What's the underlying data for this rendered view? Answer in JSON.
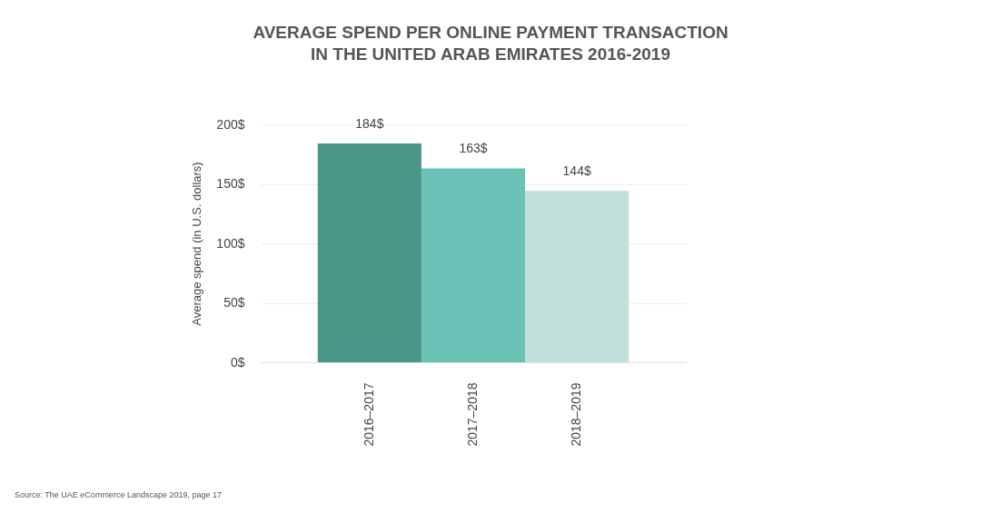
{
  "chart_data": {
    "type": "bar",
    "title": "AVERAGE SPEND PER ONLINE PAYMENT TRANSACTION\nIN THE UNITED ARAB EMIRATES 2016-2019",
    "ylabel": "Average spend (in U.S. dollars)",
    "categories": [
      "2016–2017",
      "2017–2018",
      "2018–2019"
    ],
    "values": [
      184,
      163,
      144
    ],
    "colors": [
      "#4a9688",
      "#6ac1b6",
      "#c0e1da"
    ],
    "value_labels": [
      "184$",
      "163$",
      "144$"
    ],
    "ylim": [
      0,
      200
    ],
    "yticks": [
      {
        "value": 0,
        "label": "0$"
      },
      {
        "value": 50,
        "label": "50$"
      },
      {
        "value": 100,
        "label": "100$"
      },
      {
        "value": 150,
        "label": "150$"
      },
      {
        "value": 200,
        "label": "200$"
      }
    ],
    "grid": true,
    "annotations": [
      "Source: The UAE eCommerce Landscape 2019, page 17"
    ]
  }
}
